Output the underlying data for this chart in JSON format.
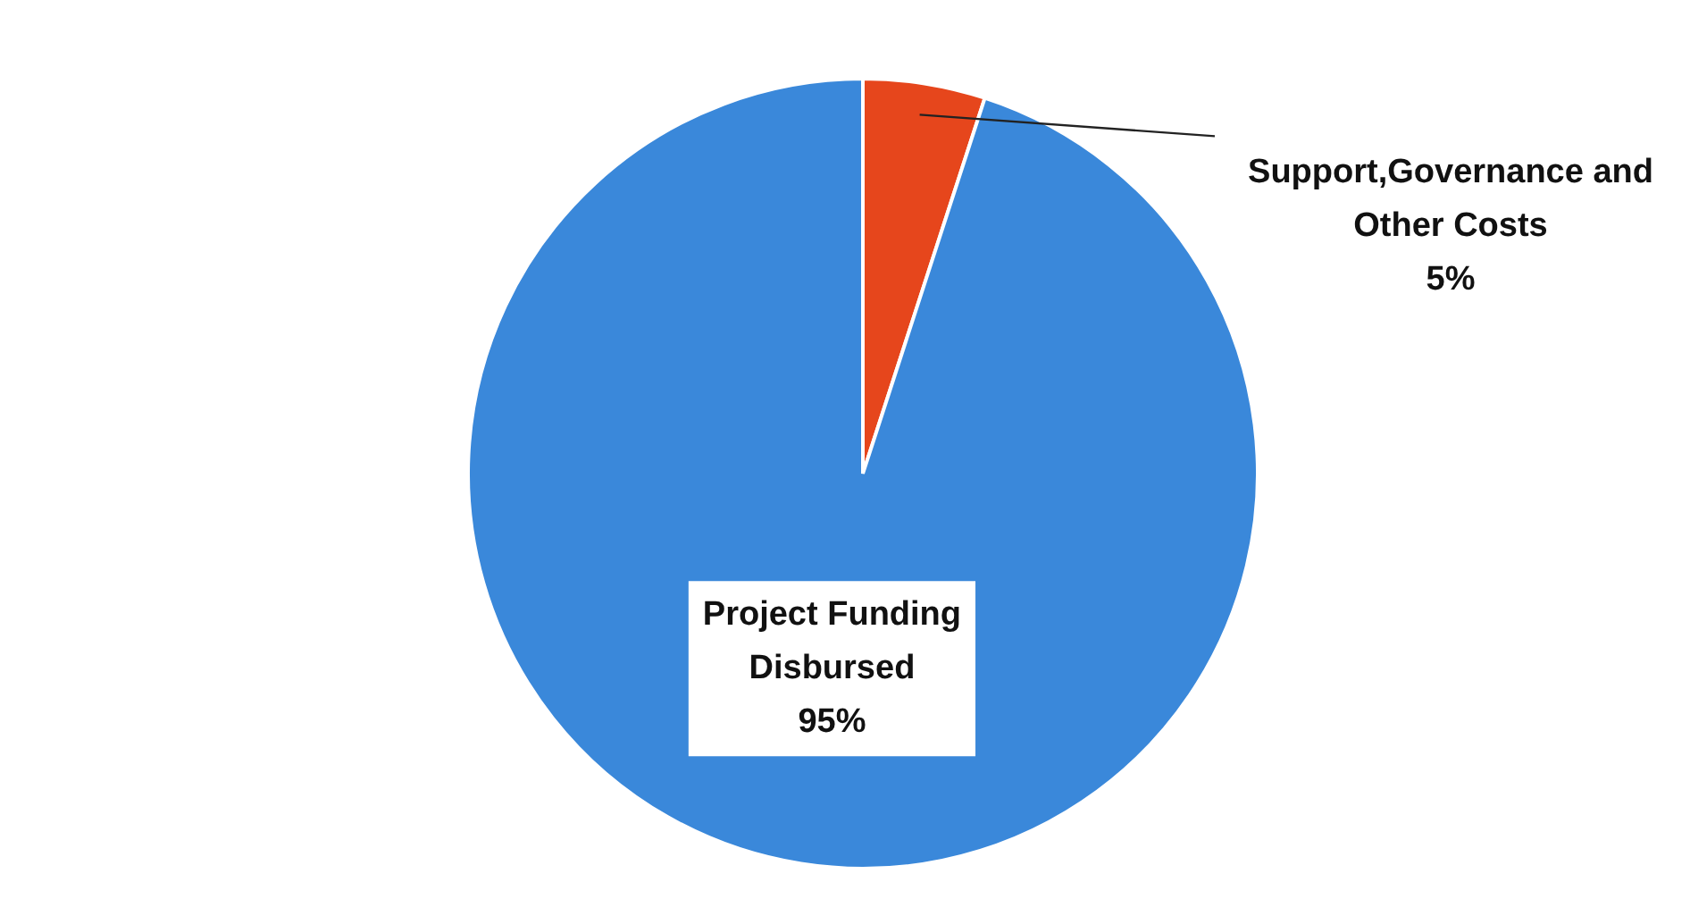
{
  "chart_data": {
    "type": "pie",
    "categories": [
      "Support,Governance and Other Costs",
      "Project Funding Disbursed"
    ],
    "values": [
      5,
      95
    ],
    "colors": [
      "#e6461c",
      "#3a88da"
    ],
    "value_labels": [
      "5%",
      "95%"
    ],
    "legend": false
  }
}
